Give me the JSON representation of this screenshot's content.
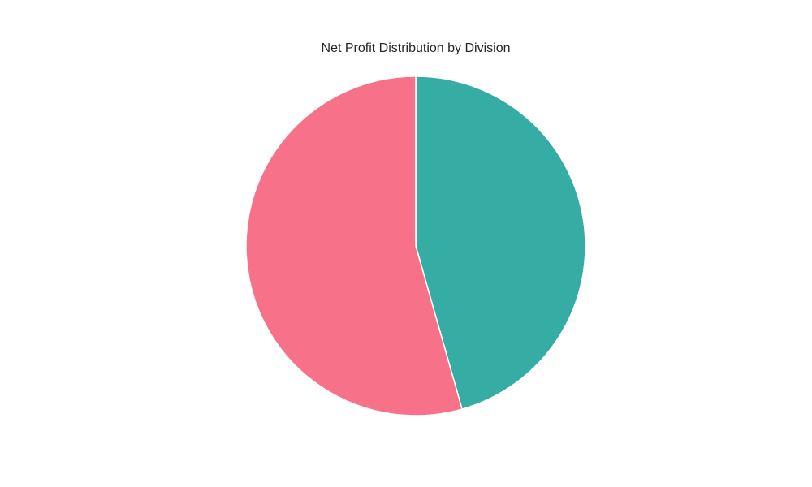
{
  "chart_data": {
    "type": "pie",
    "title": "Net Profit Distribution by Division",
    "slices": [
      {
        "value": 45.6,
        "color": "#36ADA4"
      },
      {
        "value": 54.4,
        "color": "#F77189"
      }
    ],
    "start_angle": "top",
    "direction": "clockwise",
    "legend": "none"
  }
}
